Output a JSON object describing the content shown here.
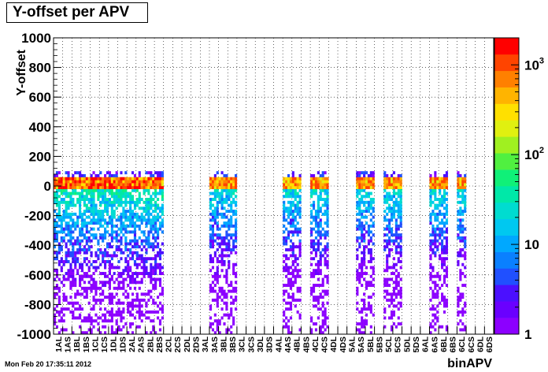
{
  "title": "Y-offset per APV",
  "timestamp": "Mon Feb 20 17:35:11 2012",
  "chart_data": {
    "type": "heatmap",
    "title": "Y-offset per APV",
    "xlabel": "binAPV",
    "ylabel": "Y-offset",
    "ylim": [
      -1000,
      1000
    ],
    "y_ticks": [
      -1000,
      -800,
      -600,
      -400,
      -200,
      0,
      200,
      400,
      600,
      800,
      1000
    ],
    "y_tick_labels": [
      "-1000",
      "-800",
      "-600",
      "-400",
      "-200",
      "0",
      "200",
      "400",
      "600",
      "800",
      "1000"
    ],
    "grid": true,
    "categories": [
      "1AL",
      "1AS",
      "1BL",
      "1BS",
      "1CL",
      "1CS",
      "1DL",
      "1DS",
      "2AL",
      "2AS",
      "2BL",
      "2BS",
      "2CL",
      "2CS",
      "2DL",
      "2DS",
      "3AL",
      "3AS",
      "3BL",
      "3BS",
      "3CL",
      "3CS",
      "3DL",
      "3DS",
      "4AL",
      "4AS",
      "4BL",
      "4BS",
      "4CL",
      "4CS",
      "4DL",
      "4DS",
      "5AL",
      "5AS",
      "5BL",
      "5BS",
      "5CL",
      "5CS",
      "5DL",
      "5DS",
      "6AL",
      "6AS",
      "6BL",
      "6BS",
      "6CL",
      "6CS",
      "6DL",
      "6DS"
    ],
    "populated_ranges": [
      [
        0,
        11
      ],
      [
        17,
        19
      ],
      [
        25,
        26
      ],
      [
        28,
        29
      ],
      [
        33,
        34
      ],
      [
        36,
        37
      ],
      [
        41,
        42
      ],
      [
        44,
        44
      ]
    ],
    "peak_y": 20,
    "colorbar": {
      "scale": "log",
      "min": 1,
      "max": 2000,
      "tick_labels": [
        {
          "value": 1,
          "base": "1",
          "exp": ""
        },
        {
          "value": 10,
          "base": "10",
          "exp": ""
        },
        {
          "value": 100,
          "base": "10",
          "exp": "2"
        },
        {
          "value": 1000,
          "base": "10",
          "exp": "3"
        }
      ],
      "colors": [
        "#8c00ff",
        "#6a00ff",
        "#4b10ff",
        "#2050ff",
        "#0a80ff",
        "#00a8ff",
        "#00c8f0",
        "#00dcd0",
        "#00e8a8",
        "#10f078",
        "#50f040",
        "#a0f020",
        "#e0f010",
        "#ffe000",
        "#ffb400",
        "#ff8000",
        "#ff4400",
        "#ff0000"
      ]
    }
  }
}
